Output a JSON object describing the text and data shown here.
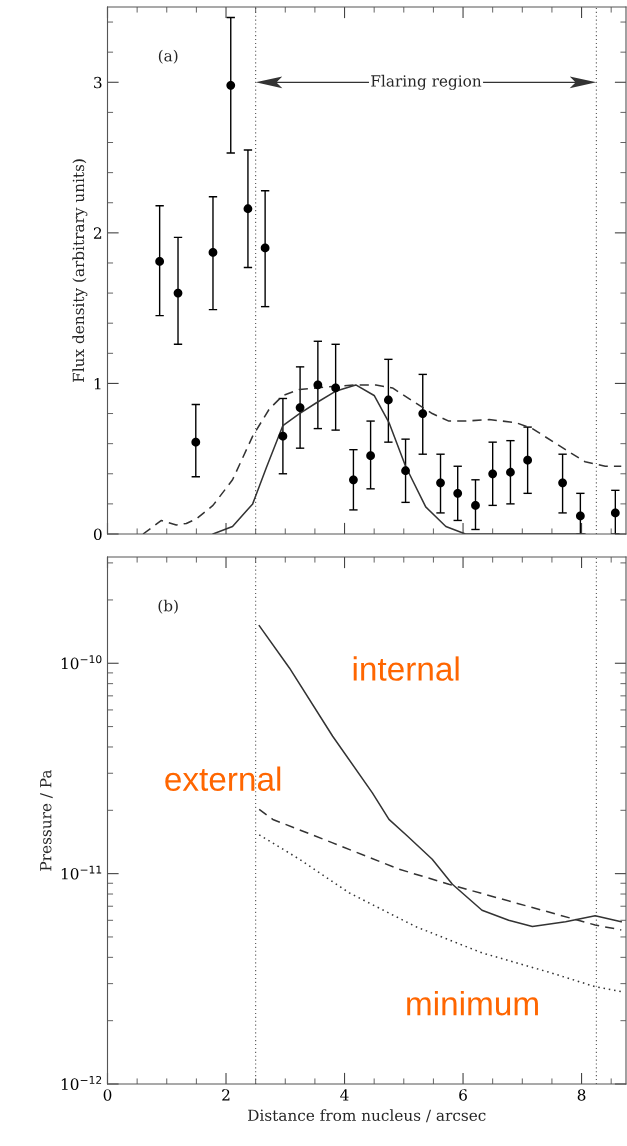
{
  "chart_data": [
    {
      "type": "scatter",
      "ylabel": "Flux density (arbitrary units)",
      "xlim": [
        0,
        8.75
      ],
      "ylim": [
        0,
        3.5
      ],
      "yticks": [
        0,
        1,
        2,
        3
      ],
      "tick_labels": "y",
      "annotations": [
        "(a)",
        "Flaring region"
      ],
      "ref_lines": [
        {
          "axis": "x",
          "value": 2.5,
          "color": "#555555",
          "line_style": "dotted"
        },
        {
          "axis": "x",
          "value": 8.25,
          "color": "#555555",
          "line_style": "dotted"
        }
      ],
      "series": [
        {
          "type": "scatter",
          "marker": "circle",
          "color": "#000000",
          "x": [
            0.88,
            1.19,
            1.49,
            1.78,
            2.08,
            2.37,
            2.66,
            2.96,
            3.25,
            3.55,
            3.85,
            4.15,
            4.44,
            4.74,
            5.03,
            5.32,
            5.62,
            5.91,
            6.21,
            6.5,
            6.8,
            7.09,
            7.68,
            7.98,
            8.57
          ],
          "values": [
            1.81,
            1.6,
            0.61,
            1.87,
            2.98,
            2.16,
            1.9,
            0.65,
            0.84,
            0.99,
            0.97,
            0.36,
            0.52,
            0.89,
            0.42,
            0.8,
            0.34,
            0.27,
            0.19,
            0.4,
            0.41,
            0.49,
            0.34,
            0.12,
            0.14
          ],
          "errors": [
            [
              1.45,
              2.18
            ],
            [
              1.26,
              1.97
            ],
            [
              0.38,
              0.86
            ],
            [
              1.49,
              2.24
            ],
            [
              2.53,
              3.43
            ],
            [
              1.77,
              2.55
            ],
            [
              1.51,
              2.28
            ],
            [
              0.4,
              0.9
            ],
            [
              0.57,
              1.11
            ],
            [
              0.7,
              1.28
            ],
            [
              0.69,
              1.26
            ],
            [
              0.16,
              0.56
            ],
            [
              0.3,
              0.75
            ],
            [
              0.61,
              1.16
            ],
            [
              0.21,
              0.63
            ],
            [
              0.53,
              1.06
            ],
            [
              0.14,
              0.53
            ],
            [
              0.09,
              0.45
            ],
            [
              0.03,
              0.36
            ],
            [
              0.19,
              0.61
            ],
            [
              0.2,
              0.62
            ],
            [
              0.27,
              0.71
            ],
            [
              0.14,
              0.53
            ],
            [
              0,
              0.27
            ],
            [
              0,
              0.29
            ]
          ]
        },
        {
          "type": "line",
          "color": "#333333",
          "line_style": "dashed",
          "x": [
            0.6,
            0.91,
            1.16,
            1.33,
            1.5,
            1.78,
            2.11,
            2.45,
            2.73,
            2.96,
            3.24,
            3.8,
            4.19,
            4.53,
            4.81,
            5.2,
            5.48,
            5.76,
            6.04,
            6.44,
            6.89,
            7.17,
            7.73,
            8.06,
            8.4,
            8.67
          ],
          "values": [
            0,
            0.09,
            0.06,
            0.07,
            0.1,
            0.19,
            0.36,
            0.65,
            0.83,
            0.92,
            0.96,
            0.98,
            0.99,
            0.99,
            0.97,
            0.87,
            0.8,
            0.75,
            0.75,
            0.76,
            0.74,
            0.7,
            0.56,
            0.48,
            0.45,
            0.45
          ]
        },
        {
          "type": "line",
          "color": "#333333",
          "line_style": "solid",
          "x": [
            1.78,
            2.11,
            2.45,
            2.68,
            2.96,
            3.24,
            3.52,
            3.86,
            4.19,
            4.5,
            4.75,
            5.03,
            5.37,
            5.71,
            6.04,
            8.06
          ],
          "values": [
            0,
            0.05,
            0.2,
            0.44,
            0.72,
            0.8,
            0.87,
            0.95,
            0.99,
            0.92,
            0.74,
            0.45,
            0.18,
            0.05,
            0,
            0
          ]
        }
      ]
    },
    {
      "type": "line",
      "xlabel": "Distance from nucleus / arcsec",
      "ylabel": "Pressure / Pa",
      "log": "y",
      "xlim": [
        0,
        8.75
      ],
      "ylim": [
        1e-12,
        3.2e-10
      ],
      "xticks": [
        0,
        2,
        4,
        6,
        8
      ],
      "yticks": [
        {
          "value": 1e-12,
          "label": "10$^{−12}$"
        },
        {
          "value": 1e-11,
          "label": "10$^{−11}$"
        },
        {
          "value": 1e-10,
          "label": "10$^{−10}$"
        }
      ],
      "annotations": [
        "(b)"
      ],
      "ref_lines": [
        {
          "axis": "x",
          "value": 2.5,
          "color": "#555555",
          "line_style": "dotted"
        },
        {
          "axis": "x",
          "value": 8.25,
          "color": "#555555",
          "line_style": "dotted"
        }
      ],
      "series": [
        {
          "name": "internal",
          "color": "#333333",
          "line_style": "solid",
          "x": [
            2.56,
            3.07,
            3.8,
            4.47,
            4.75,
            5.06,
            5.48,
            5.82,
            6.32,
            6.77,
            7.17,
            7.73,
            8.23,
            8.67
          ],
          "values": [
            1.51e-10,
            9.5e-11,
            4.5e-11,
            2.42e-11,
            1.81e-11,
            1.51e-11,
            1.17e-11,
            8.9e-12,
            6.7e-12,
            6e-12,
            5.6e-12,
            5.9e-12,
            6.3e-12,
            5.9e-12
          ]
        },
        {
          "name": "external",
          "color": "#333333",
          "line_style": "dashed",
          "x": [
            2.56,
            2.79,
            3.8,
            4.92,
            5.76,
            7.17,
            8.23,
            8.67
          ],
          "values": [
            2.02e-11,
            1.81e-11,
            1.4e-11,
            1.05e-11,
            8.9e-12,
            6.9e-12,
            5.7e-12,
            5.4e-12
          ]
        },
        {
          "name": "minimum",
          "color": "#333333",
          "line_style": "dotted",
          "x": [
            2.56,
            3.24,
            4.08,
            5.2,
            6.32,
            7.45,
            8.23,
            8.67
          ],
          "values": [
            1.53e-11,
            1.17e-11,
            8.1e-12,
            5.6e-12,
            4.2e-12,
            3.4e-12,
            2.9e-12,
            2.75e-12
          ]
        }
      ]
    }
  ]
}
